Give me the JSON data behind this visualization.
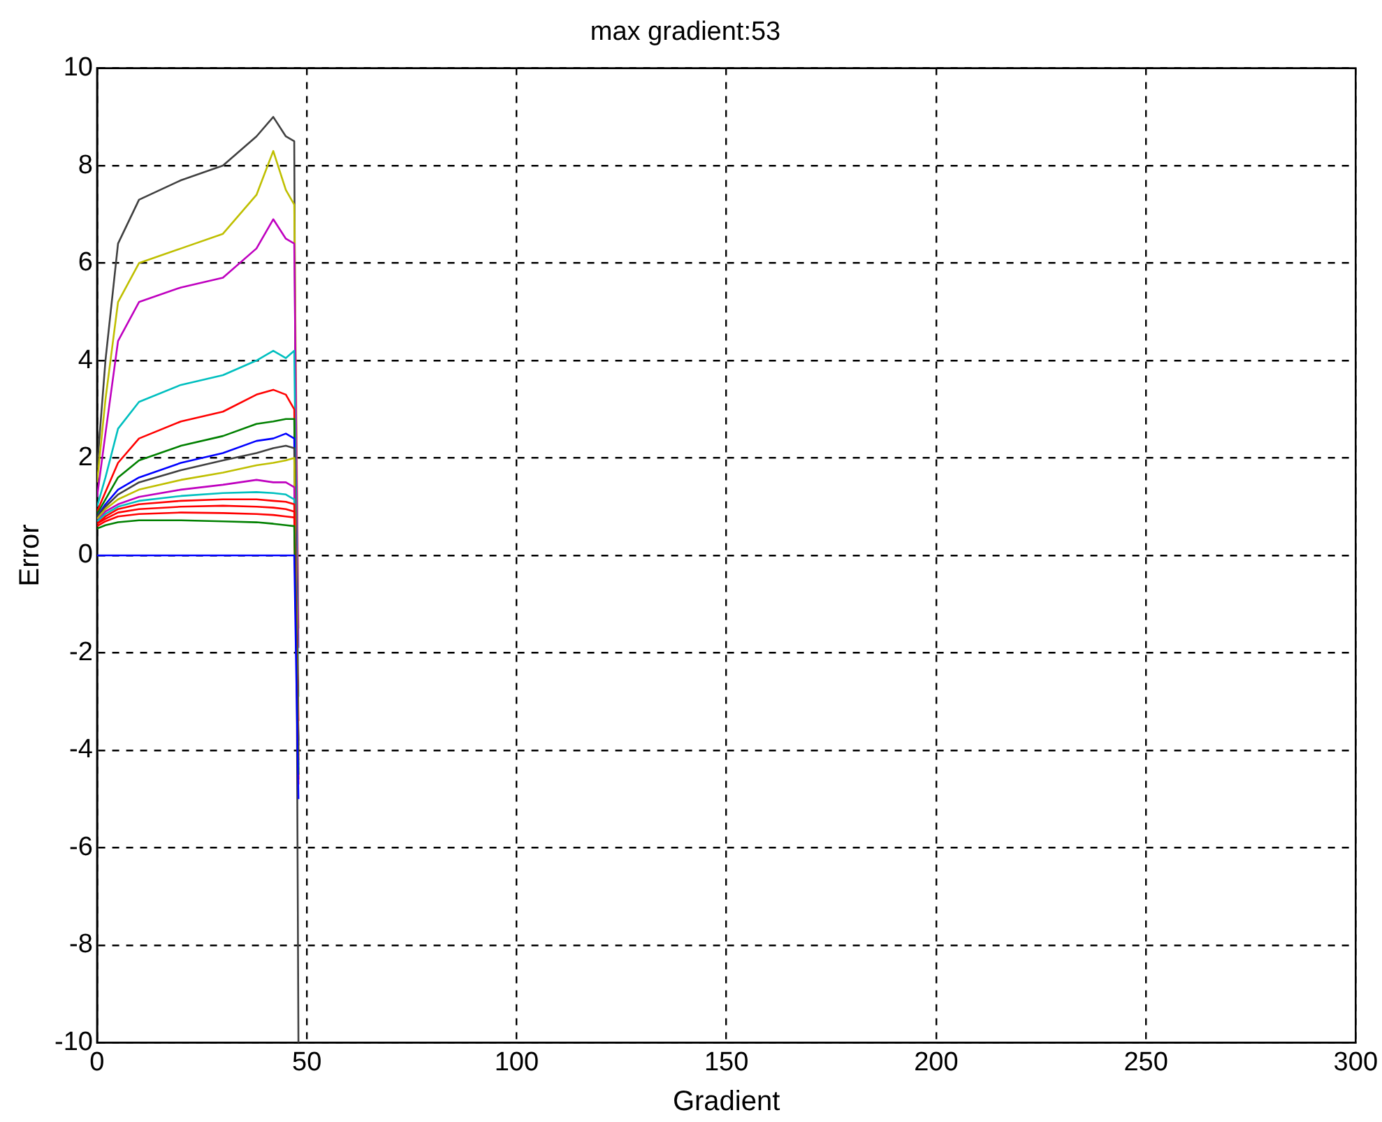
{
  "chart_data": {
    "type": "line",
    "title": "max gradient:53",
    "xlabel": "Gradient",
    "ylabel": "Error",
    "x": [
      0,
      2,
      5,
      10,
      20,
      30,
      38,
      42,
      45,
      47,
      48
    ],
    "xlim": [
      0,
      300
    ],
    "xticks": [
      0,
      50,
      100,
      150,
      200,
      250,
      300
    ],
    "ylim": [
      -10,
      10
    ],
    "yticks": [
      -10,
      -8,
      -6,
      -4,
      -2,
      0,
      2,
      4,
      6,
      8,
      10
    ],
    "grid": true,
    "legend": false,
    "marker": "none",
    "line_style": "solid",
    "series": [
      {
        "color": "#0000ff",
        "values": [
          0,
          0,
          0,
          0,
          0,
          0,
          0,
          0,
          0,
          0,
          -5.0
        ]
      },
      {
        "color": "#008000",
        "values": [
          0.55,
          0.62,
          0.68,
          0.72,
          0.72,
          0.7,
          0.68,
          0.65,
          0.62,
          0.6,
          -4.5
        ]
      },
      {
        "color": "#ff0000",
        "values": [
          0.6,
          0.7,
          0.8,
          0.85,
          0.88,
          0.87,
          0.85,
          0.83,
          0.8,
          0.78,
          -4.6
        ]
      },
      {
        "color": "#ff0000",
        "values": [
          0.65,
          0.75,
          0.88,
          0.95,
          1.0,
          1.02,
          1.0,
          0.98,
          0.95,
          0.9,
          -4.7
        ]
      },
      {
        "color": "#ff0000",
        "values": [
          0.65,
          0.8,
          0.95,
          1.05,
          1.12,
          1.15,
          1.15,
          1.12,
          1.1,
          1.05,
          -4.2
        ]
      },
      {
        "color": "#00bfbf",
        "values": [
          0.7,
          0.85,
          1.0,
          1.12,
          1.22,
          1.28,
          1.3,
          1.28,
          1.25,
          1.15,
          -4.4
        ]
      },
      {
        "color": "#bf00bf",
        "values": [
          0.7,
          0.9,
          1.05,
          1.2,
          1.35,
          1.45,
          1.55,
          1.5,
          1.5,
          1.4,
          -4.3
        ]
      },
      {
        "color": "#bfbf00",
        "values": [
          0.75,
          0.95,
          1.15,
          1.35,
          1.55,
          1.7,
          1.85,
          1.9,
          1.95,
          2.0,
          -4.1
        ]
      },
      {
        "color": "#404040",
        "values": [
          0.8,
          1.0,
          1.25,
          1.5,
          1.75,
          1.95,
          2.1,
          2.2,
          2.25,
          2.2,
          -4.0
        ]
      },
      {
        "color": "#0000ff",
        "values": [
          0.8,
          1.05,
          1.35,
          1.6,
          1.9,
          2.1,
          2.35,
          2.4,
          2.5,
          2.4,
          -3.9
        ]
      },
      {
        "color": "#008000",
        "values": [
          0.85,
          1.15,
          1.6,
          1.95,
          2.25,
          2.45,
          2.7,
          2.75,
          2.8,
          2.8,
          -3.8
        ]
      },
      {
        "color": "#ff0000",
        "values": [
          0.9,
          1.3,
          1.9,
          2.4,
          2.75,
          2.95,
          3.3,
          3.4,
          3.3,
          3.0,
          -3.4
        ]
      },
      {
        "color": "#00bfbf",
        "values": [
          1.0,
          1.6,
          2.6,
          3.15,
          3.5,
          3.7,
          4.0,
          4.2,
          4.05,
          4.2,
          -2.9
        ]
      },
      {
        "color": "#bf00bf",
        "values": [
          1.2,
          2.5,
          4.4,
          5.2,
          5.5,
          5.7,
          6.3,
          6.9,
          6.5,
          6.4,
          -1.9
        ]
      },
      {
        "color": "#bfbf00",
        "values": [
          1.5,
          3.2,
          5.2,
          6.0,
          6.3,
          6.6,
          7.4,
          8.3,
          7.5,
          7.2,
          -1.5
        ]
      },
      {
        "color": "#404040",
        "values": [
          1.8,
          4.0,
          6.4,
          7.3,
          7.7,
          8.0,
          8.6,
          9.0,
          8.6,
          8.5,
          -10
        ]
      }
    ]
  }
}
